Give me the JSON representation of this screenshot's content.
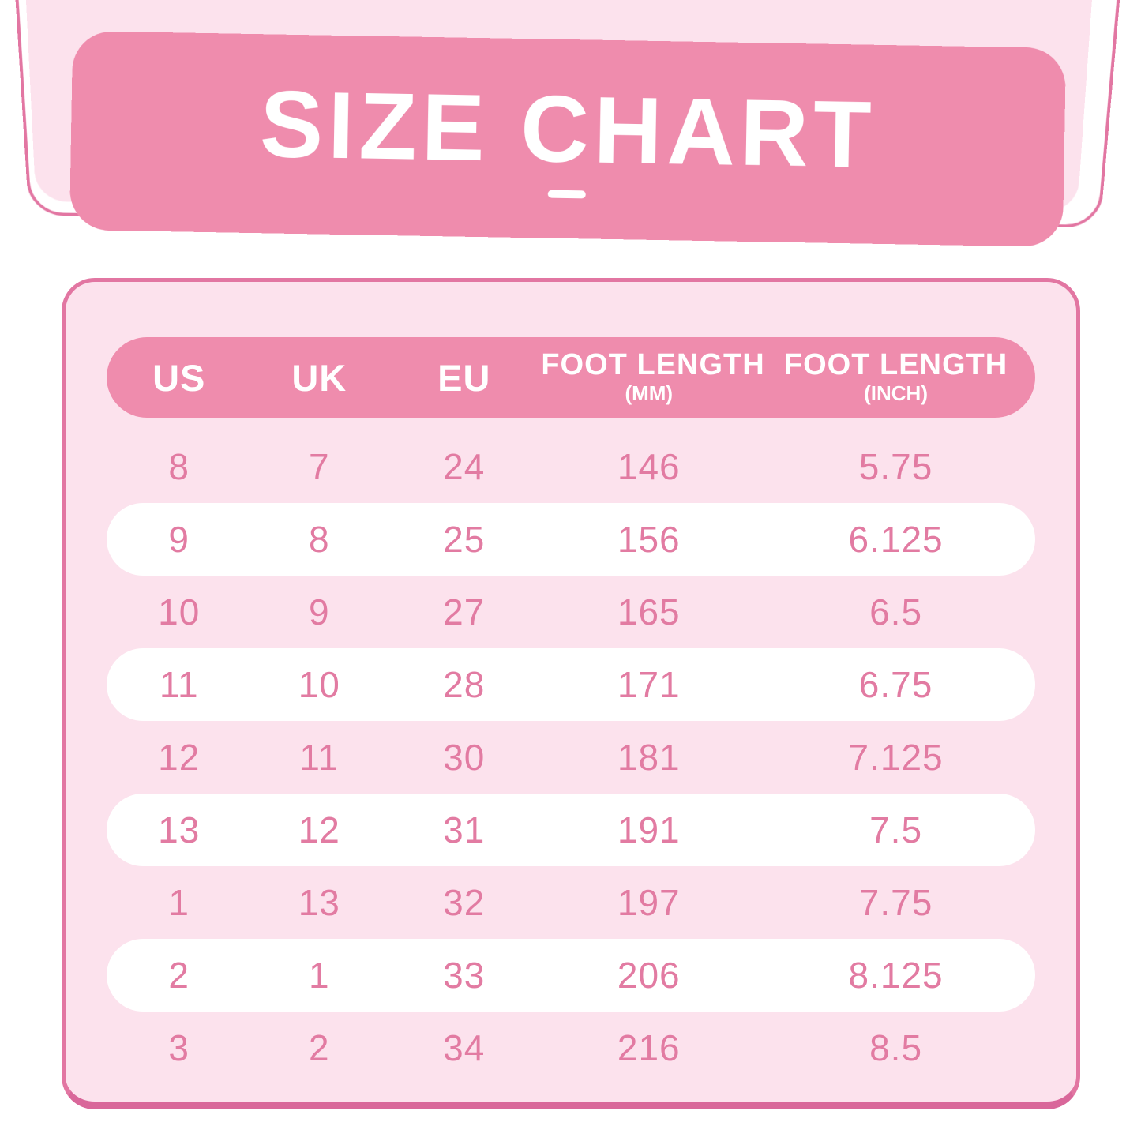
{
  "chart_data": {
    "type": "table",
    "title": "SIZE CHART",
    "columns": [
      "US",
      "UK",
      "EU",
      "FOOT LENGTH (MM)",
      "FOOT LENGTH (INCH)"
    ],
    "headers": [
      {
        "label": "US",
        "sub": ""
      },
      {
        "label": "UK",
        "sub": ""
      },
      {
        "label": "EU",
        "sub": ""
      },
      {
        "label": "FOOT LENGTH",
        "sub": "(MM)"
      },
      {
        "label": "FOOT LENGTH",
        "sub": "(INCH)"
      }
    ],
    "rows": [
      [
        "8",
        "7",
        "24",
        "146",
        "5.75"
      ],
      [
        "9",
        "8",
        "25",
        "156",
        "6.125"
      ],
      [
        "10",
        "9",
        "27",
        "165",
        "6.5"
      ],
      [
        "11",
        "10",
        "28",
        "171",
        "6.75"
      ],
      [
        "12",
        "11",
        "30",
        "181",
        "7.125"
      ],
      [
        "13",
        "12",
        "31",
        "191",
        "7.5"
      ],
      [
        "1",
        "13",
        "32",
        "197",
        "7.75"
      ],
      [
        "2",
        "1",
        "33",
        "206",
        "8.125"
      ],
      [
        "3",
        "2",
        "34",
        "216",
        "8.5"
      ]
    ]
  },
  "colors": {
    "accent_pink": "#ef8cad",
    "light_pink": "#fce2ed",
    "border_pink": "#e276a2",
    "border_dark_pink": "#d9679a",
    "text_pink": "#e27ba2",
    "header_text": "#ffffff",
    "row_alt_background": "#ffffff"
  }
}
